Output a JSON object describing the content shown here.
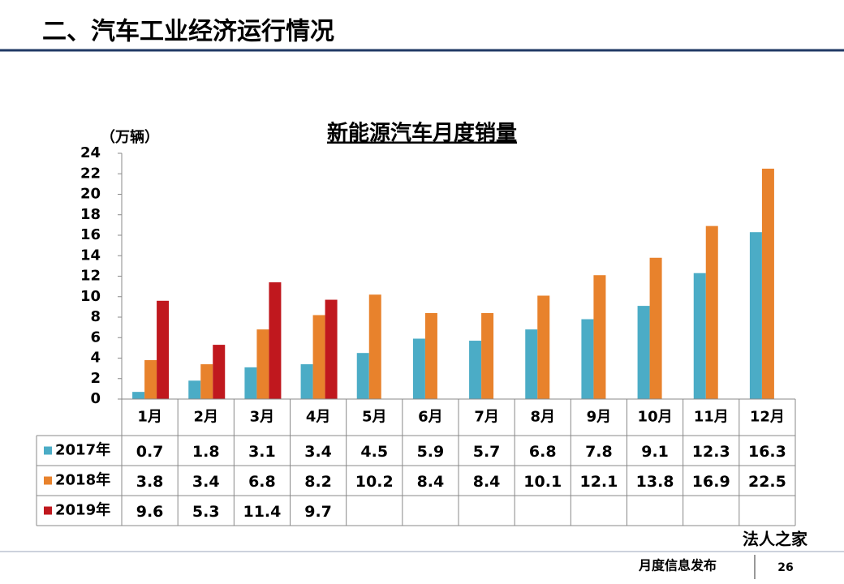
{
  "header": "二、汽车工业经济运行情况",
  "footer": {
    "text": "月度信息发布",
    "page": "26",
    "watermark": "法人之家"
  },
  "chart_data": {
    "type": "bar",
    "title": "新能源汽车月度销量",
    "y_label": "（万辆）",
    "categories": [
      "1月",
      "2月",
      "3月",
      "4月",
      "5月",
      "6月",
      "7月",
      "8月",
      "9月",
      "10月",
      "11月",
      "12月"
    ],
    "series": [
      {
        "name": "2017年",
        "color": "#4bacc6",
        "values": [
          0.7,
          1.8,
          3.1,
          3.4,
          4.5,
          5.9,
          5.7,
          6.8,
          7.8,
          9.1,
          12.3,
          16.3
        ]
      },
      {
        "name": "2018年",
        "color": "#e8822c",
        "values": [
          3.8,
          3.4,
          6.8,
          8.2,
          10.2,
          8.4,
          8.4,
          10.1,
          12.1,
          13.8,
          16.9,
          22.5
        ]
      },
      {
        "name": "2019年",
        "color": "#c0181e",
        "values": [
          9.6,
          5.3,
          11.4,
          9.7,
          null,
          null,
          null,
          null,
          null,
          null,
          null,
          null
        ]
      }
    ],
    "ylim": [
      0,
      24
    ],
    "yticks": [
      0,
      2,
      4,
      6,
      8,
      10,
      12,
      14,
      16,
      18,
      20,
      22,
      24
    ]
  }
}
